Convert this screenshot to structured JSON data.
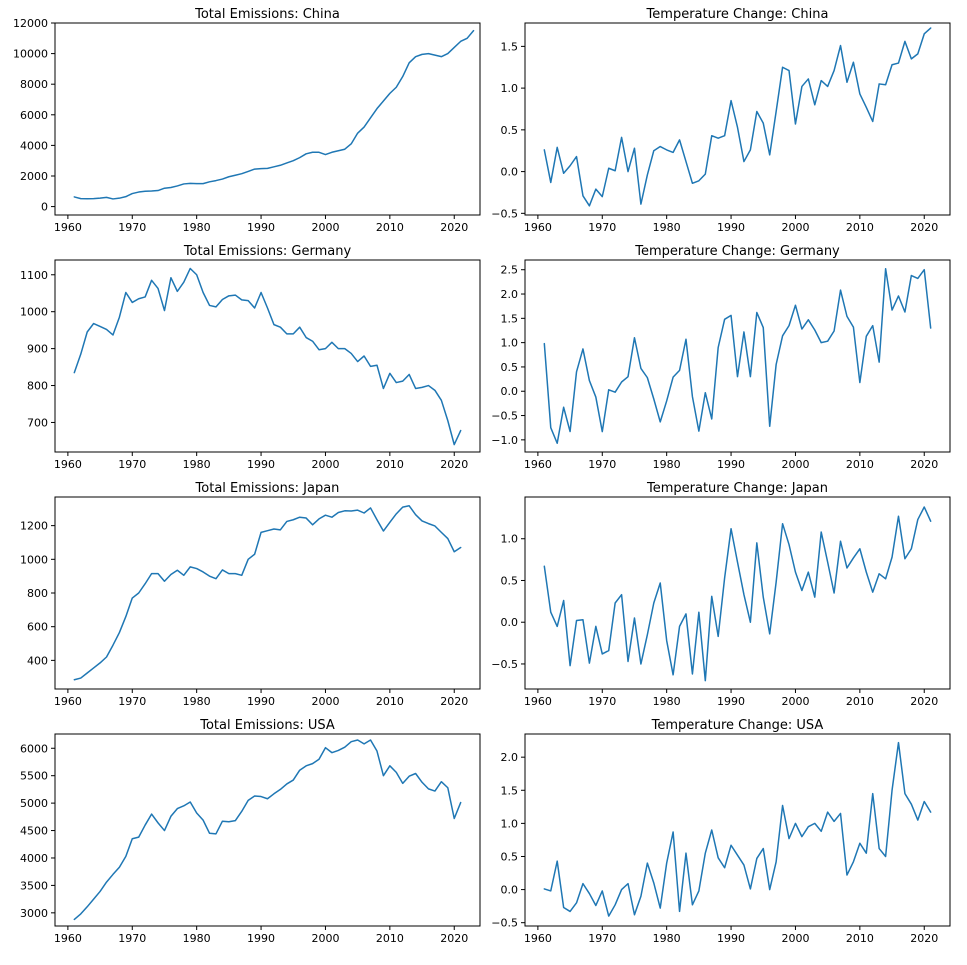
{
  "colors": {
    "line": "#1f77b4",
    "axis": "#000000"
  },
  "chart_data": [
    {
      "type": "line",
      "title": "Total Emissions: China",
      "x_start": 1961,
      "x_ticks": [
        1960,
        1970,
        1980,
        1990,
        2000,
        2010,
        2020
      ],
      "y_ticks": [
        0,
        2000,
        4000,
        6000,
        8000,
        10000,
        12000
      ],
      "y_tick_labels": [
        "0",
        "2000",
        "4000",
        "6000",
        "8000",
        "10000",
        "12000"
      ],
      "xlim": [
        1958,
        2024
      ],
      "ylim": [
        -550,
        12000
      ],
      "series": [
        {
          "values": [
            630,
            520,
            510,
            520,
            550,
            600,
            500,
            550,
            650,
            850,
            950,
            1000,
            1020,
            1050,
            1200,
            1250,
            1350,
            1480,
            1520,
            1500,
            1500,
            1620,
            1700,
            1800,
            1950,
            2050,
            2150,
            2300,
            2450,
            2480,
            2500,
            2600,
            2700,
            2850,
            3000,
            3200,
            3450,
            3550,
            3550,
            3400,
            3550,
            3650,
            3750,
            4100,
            4800,
            5200,
            5800,
            6400,
            6900,
            7400,
            7800,
            8500,
            9400,
            9800,
            9950,
            10000,
            9900,
            9800,
            10000,
            10400,
            10800,
            11000,
            11500
          ]
        }
      ]
    },
    {
      "type": "line",
      "title": "Temperature Change: China",
      "x_start": 1961,
      "x_ticks": [
        1960,
        1970,
        1980,
        1990,
        2000,
        2010,
        2020
      ],
      "y_ticks": [
        -0.5,
        0.0,
        0.5,
        1.0,
        1.5
      ],
      "y_tick_labels": [
        "−0.5",
        "0.0",
        "0.5",
        "1.0",
        "1.5"
      ],
      "xlim": [
        1958,
        2024
      ],
      "ylim": [
        -0.52,
        1.78
      ],
      "series": [
        {
          "values": [
            0.26,
            -0.13,
            0.29,
            -0.02,
            0.07,
            0.18,
            -0.29,
            -0.41,
            -0.21,
            -0.3,
            0.04,
            0.01,
            0.41,
            0.0,
            0.28,
            -0.39,
            -0.04,
            0.25,
            0.3,
            0.26,
            0.23,
            0.38,
            0.12,
            -0.14,
            -0.11,
            -0.03,
            0.43,
            0.4,
            0.43,
            0.85,
            0.53,
            0.12,
            0.26,
            0.72,
            0.58,
            0.2,
            0.72,
            1.25,
            1.21,
            0.57,
            1.02,
            1.11,
            0.8,
            1.09,
            1.02,
            1.21,
            1.51,
            1.07,
            1.31,
            0.93,
            0.77,
            0.6,
            1.05,
            1.04,
            1.28,
            1.3,
            1.56,
            1.35,
            1.41,
            1.65,
            1.72
          ]
        }
      ]
    },
    {
      "type": "line",
      "title": "Total Emissions: Germany",
      "x_start": 1961,
      "x_ticks": [
        1960,
        1970,
        1980,
        1990,
        2000,
        2010,
        2020
      ],
      "y_ticks": [
        700,
        800,
        900,
        1000,
        1100
      ],
      "y_tick_labels": [
        "700",
        "800",
        "900",
        "1000",
        "1100"
      ],
      "xlim": [
        1958,
        2024
      ],
      "ylim": [
        620,
        1140
      ],
      "series": [
        {
          "values": [
            835,
            885,
            945,
            968,
            960,
            952,
            937,
            985,
            1052,
            1025,
            1035,
            1040,
            1085,
            1063,
            1003,
            1092,
            1055,
            1080,
            1117,
            1100,
            1052,
            1017,
            1013,
            1033,
            1043,
            1045,
            1032,
            1030,
            1010,
            1052,
            1010,
            965,
            958,
            940,
            940,
            958,
            930,
            920,
            897,
            900,
            917,
            900,
            900,
            887,
            865,
            880,
            852,
            855,
            792,
            833,
            808,
            812,
            830,
            792,
            795,
            800,
            787,
            760,
            705,
            640,
            678
          ]
        }
      ]
    },
    {
      "type": "line",
      "title": "Temperature Change: Germany",
      "x_start": 1961,
      "x_ticks": [
        1960,
        1970,
        1980,
        1990,
        2000,
        2010,
        2020
      ],
      "y_ticks": [
        -1.0,
        -0.5,
        0.0,
        0.5,
        1.0,
        1.5,
        2.0,
        2.5
      ],
      "y_tick_labels": [
        "−1.0",
        "−0.5",
        "0.0",
        "0.5",
        "1.0",
        "1.5",
        "2.0",
        "2.5"
      ],
      "xlim": [
        1958,
        2024
      ],
      "ylim": [
        -1.25,
        2.7
      ],
      "series": [
        {
          "values": [
            0.98,
            -0.75,
            -1.07,
            -0.33,
            -0.83,
            0.4,
            0.87,
            0.22,
            -0.12,
            -0.83,
            0.03,
            -0.02,
            0.19,
            0.3,
            1.1,
            0.47,
            0.28,
            -0.16,
            -0.63,
            -0.2,
            0.29,
            0.43,
            1.07,
            -0.11,
            -0.82,
            -0.03,
            -0.57,
            0.9,
            1.48,
            1.56,
            0.3,
            1.22,
            0.3,
            1.62,
            1.31,
            -0.72,
            0.55,
            1.14,
            1.35,
            1.77,
            1.28,
            1.47,
            1.26,
            1.0,
            1.03,
            1.24,
            2.08,
            1.54,
            1.32,
            0.18,
            1.13,
            1.35,
            0.6,
            2.52,
            1.67,
            1.96,
            1.63,
            2.38,
            2.32,
            2.5,
            1.3
          ]
        }
      ]
    },
    {
      "type": "line",
      "title": "Total Emissions: Japan",
      "x_start": 1961,
      "x_ticks": [
        1960,
        1970,
        1980,
        1990,
        2000,
        2010,
        2020
      ],
      "y_ticks": [
        400,
        600,
        800,
        1000,
        1200
      ],
      "y_tick_labels": [
        "400",
        "600",
        "800",
        "1000",
        "1200"
      ],
      "xlim": [
        1958,
        2024
      ],
      "ylim": [
        230,
        1370
      ],
      "series": [
        {
          "values": [
            285,
            295,
            325,
            355,
            385,
            420,
            490,
            565,
            660,
            770,
            800,
            855,
            915,
            915,
            870,
            910,
            935,
            905,
            955,
            945,
            925,
            900,
            885,
            937,
            915,
            915,
            905,
            1000,
            1030,
            1160,
            1170,
            1180,
            1175,
            1225,
            1235,
            1250,
            1245,
            1205,
            1240,
            1262,
            1250,
            1278,
            1288,
            1287,
            1292,
            1275,
            1305,
            1235,
            1168,
            1220,
            1270,
            1310,
            1318,
            1265,
            1228,
            1212,
            1198,
            1160,
            1123,
            1045,
            1070
          ]
        }
      ]
    },
    {
      "type": "line",
      "title": "Temperature Change: Japan",
      "x_start": 1961,
      "x_ticks": [
        1960,
        1970,
        1980,
        1990,
        2000,
        2010,
        2020
      ],
      "y_ticks": [
        -0.5,
        0.0,
        0.5,
        1.0
      ],
      "y_tick_labels": [
        "−0.5",
        "0.0",
        "0.5",
        "1.0"
      ],
      "xlim": [
        1958,
        2024
      ],
      "ylim": [
        -0.8,
        1.5
      ],
      "series": [
        {
          "values": [
            0.67,
            0.12,
            -0.05,
            0.26,
            -0.52,
            0.02,
            0.03,
            -0.49,
            -0.05,
            -0.38,
            -0.34,
            0.23,
            0.33,
            -0.47,
            0.05,
            -0.5,
            -0.15,
            0.23,
            0.47,
            -0.22,
            -0.63,
            -0.05,
            0.1,
            -0.62,
            0.12,
            -0.7,
            0.31,
            -0.17,
            0.53,
            1.12,
            0.72,
            0.33,
            0.0,
            0.95,
            0.3,
            -0.14,
            0.48,
            1.18,
            0.93,
            0.6,
            0.38,
            0.6,
            0.3,
            1.08,
            0.72,
            0.35,
            0.97,
            0.65,
            0.77,
            0.88,
            0.6,
            0.36,
            0.58,
            0.52,
            0.78,
            1.27,
            0.76,
            0.88,
            1.23,
            1.38,
            1.21
          ]
        }
      ]
    },
    {
      "type": "line",
      "title": "Total Emissions: USA",
      "x_start": 1961,
      "x_ticks": [
        1960,
        1970,
        1980,
        1990,
        2000,
        2010,
        2020
      ],
      "y_ticks": [
        3000,
        3500,
        4000,
        4500,
        5000,
        5500,
        6000
      ],
      "y_tick_labels": [
        "3000",
        "3500",
        "4000",
        "4500",
        "5000",
        "5500",
        "6000"
      ],
      "xlim": [
        1958,
        2024
      ],
      "ylim": [
        2760,
        6260
      ],
      "series": [
        {
          "values": [
            2880,
            2980,
            3110,
            3250,
            3390,
            3560,
            3700,
            3830,
            4030,
            4350,
            4380,
            4600,
            4800,
            4640,
            4500,
            4760,
            4900,
            4950,
            5020,
            4820,
            4690,
            4450,
            4440,
            4670,
            4660,
            4680,
            4850,
            5050,
            5130,
            5120,
            5080,
            5170,
            5250,
            5350,
            5420,
            5600,
            5680,
            5720,
            5800,
            6010,
            5920,
            5960,
            6020,
            6120,
            6150,
            6080,
            6150,
            5950,
            5500,
            5680,
            5560,
            5360,
            5490,
            5540,
            5380,
            5260,
            5220,
            5390,
            5280,
            4720,
            5010
          ]
        }
      ]
    },
    {
      "type": "line",
      "title": "Temperature Change: USA",
      "x_start": 1961,
      "x_ticks": [
        1960,
        1970,
        1980,
        1990,
        2000,
        2010,
        2020
      ],
      "y_ticks": [
        -0.5,
        0.0,
        0.5,
        1.0,
        1.5,
        2.0
      ],
      "y_tick_labels": [
        "−0.5",
        "0.0",
        "0.5",
        "1.0",
        "1.5",
        "2.0"
      ],
      "xlim": [
        1958,
        2024
      ],
      "ylim": [
        -0.55,
        2.35
      ],
      "series": [
        {
          "values": [
            0.01,
            -0.02,
            0.43,
            -0.27,
            -0.33,
            -0.2,
            0.09,
            -0.06,
            -0.24,
            -0.02,
            -0.4,
            -0.23,
            0.0,
            0.09,
            -0.38,
            -0.1,
            0.4,
            0.1,
            -0.28,
            0.4,
            0.87,
            -0.33,
            0.55,
            -0.23,
            -0.02,
            0.55,
            0.9,
            0.48,
            0.33,
            0.67,
            0.52,
            0.37,
            0.01,
            0.47,
            0.62,
            0.0,
            0.42,
            1.27,
            0.77,
            1.0,
            0.8,
            0.95,
            1.0,
            0.88,
            1.17,
            1.03,
            1.15,
            0.22,
            0.42,
            0.7,
            0.55,
            1.45,
            0.62,
            0.5,
            1.5,
            2.22,
            1.45,
            1.29,
            1.05,
            1.33,
            1.17
          ]
        }
      ]
    }
  ]
}
